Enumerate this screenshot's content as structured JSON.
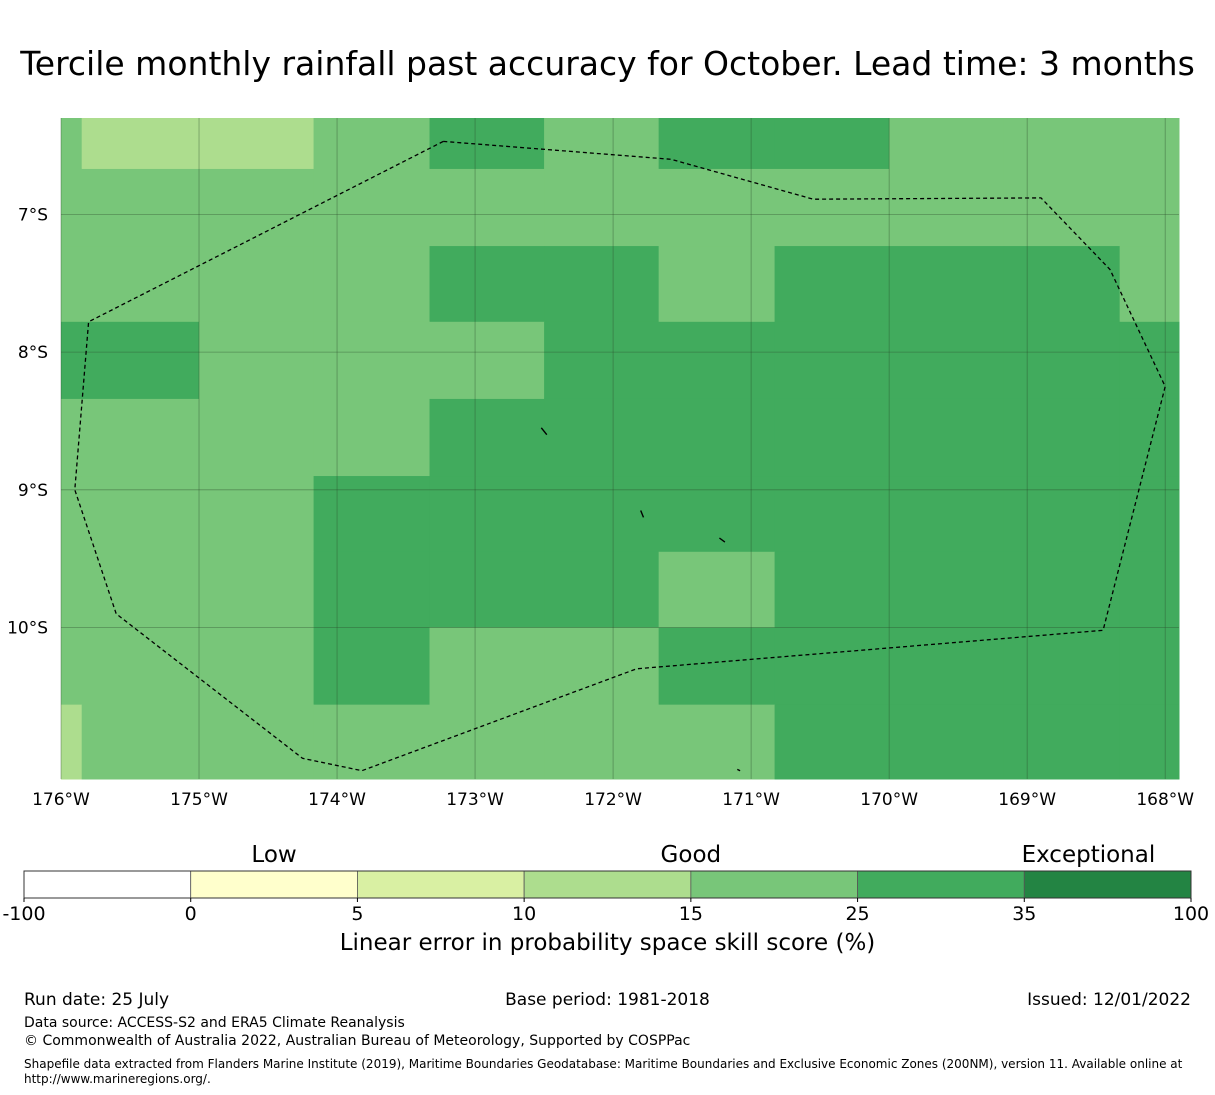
{
  "title": "Tercile monthly rainfall past accuracy for October. Lead time: 3 months",
  "map": {
    "lon_range": [
      -176,
      -167.9
    ],
    "lat_range": [
      -11.1,
      -6.3
    ],
    "x_ticks": [
      {
        "value": -176,
        "label": "176°W"
      },
      {
        "value": -175,
        "label": "175°W"
      },
      {
        "value": -174,
        "label": "174°W"
      },
      {
        "value": -173,
        "label": "173°W"
      },
      {
        "value": -172,
        "label": "172°W"
      },
      {
        "value": -171,
        "label": "171°W"
      },
      {
        "value": -170,
        "label": "170°W"
      },
      {
        "value": -169,
        "label": "169°W"
      },
      {
        "value": -168,
        "label": "168°W"
      }
    ],
    "y_ticks": [
      {
        "value": -7,
        "label": "7°S"
      },
      {
        "value": -8,
        "label": "8°S"
      },
      {
        "value": -9,
        "label": "9°S"
      },
      {
        "value": -10,
        "label": "10°S"
      }
    ],
    "cell_lon_edges": [
      -176,
      -175.85,
      -175,
      -174.17,
      -173.33,
      -172.5,
      -171.67,
      -170.83,
      -170,
      -169.17,
      -168.33,
      -167.9
    ],
    "cell_lat_edges": [
      -6.3,
      -6.67,
      -7.23,
      -7.78,
      -8.34,
      -8.9,
      -9.45,
      -10.0,
      -10.56,
      -11.1
    ],
    "skill_classes": [
      [
        4,
        3,
        3,
        4,
        5,
        4,
        5,
        5,
        4,
        4,
        4
      ],
      [
        4,
        4,
        4,
        4,
        4,
        4,
        4,
        4,
        4,
        4,
        4
      ],
      [
        4,
        4,
        4,
        4,
        5,
        5,
        4,
        5,
        5,
        5,
        4
      ],
      [
        5,
        5,
        4,
        4,
        4,
        5,
        5,
        5,
        5,
        5,
        5
      ],
      [
        4,
        4,
        4,
        4,
        5,
        5,
        5,
        5,
        5,
        5,
        5
      ],
      [
        4,
        4,
        4,
        5,
        5,
        5,
        5,
        5,
        5,
        5,
        5
      ],
      [
        4,
        4,
        4,
        5,
        5,
        5,
        4,
        5,
        5,
        5,
        5
      ],
      [
        4,
        4,
        4,
        5,
        4,
        4,
        5,
        5,
        5,
        5,
        5
      ],
      [
        3,
        4,
        4,
        4,
        4,
        4,
        4,
        5,
        5,
        5,
        5
      ]
    ],
    "eez_boundary": [
      [
        -173.23,
        -6.47
      ],
      [
        -171.58,
        -6.6
      ],
      [
        -170.55,
        -6.89
      ],
      [
        -168.9,
        -6.88
      ],
      [
        -168.4,
        -7.4
      ],
      [
        -168.0,
        -8.25
      ],
      [
        -168.45,
        -10.02
      ],
      [
        -171.83,
        -10.3
      ],
      [
        -173.82,
        -11.04
      ],
      [
        -174.25,
        -10.95
      ],
      [
        -175.6,
        -9.9
      ],
      [
        -175.9,
        -9.0
      ],
      [
        -175.8,
        -7.78
      ],
      [
        -173.23,
        -6.47
      ]
    ],
    "islands": [
      [
        [
          -172.52,
          -8.55
        ],
        [
          -172.48,
          -8.6
        ]
      ],
      [
        [
          -171.8,
          -9.15
        ],
        [
          -171.78,
          -9.2
        ]
      ],
      [
        [
          -171.23,
          -9.35
        ],
        [
          -171.19,
          -9.38
        ]
      ],
      [
        [
          -171.1,
          -11.03
        ],
        [
          -171.08,
          -11.04
        ]
      ]
    ]
  },
  "colorbar": {
    "categories": [
      {
        "label": "Low",
        "value": 2.5
      },
      {
        "label": "Good",
        "value": 15
      },
      {
        "label": "Exceptional",
        "value": 60
      }
    ],
    "boundaries": [
      "-100",
      "0",
      "5",
      "10",
      "15",
      "25",
      "35",
      "100"
    ],
    "colors": [
      "#ffffff",
      "#ffffcc",
      "#d9f0a3",
      "#addd8e",
      "#78c679",
      "#41ab5d",
      "#238443"
    ],
    "title": "Linear error in probability space skill score (%)"
  },
  "footer": {
    "run_date": "Run date: 25 July",
    "base_period": "Base period: 1981-2018",
    "issued": "Issued: 12/01/2022",
    "data_source": "Data source: ACCESS-S2 and ERA5 Climate Reanalysis",
    "copyright": "© Commonwealth of Australia 2022, Australian Bureau of Meteorology, Supported by COSPPac",
    "shapefile": "Shapefile data extracted from Flanders Marine Institute (2019), Maritime Boundaries Geodatabase: Maritime Boundaries and Exclusive Economic Zones (200NM), version 11. Available online at http://www.marineregions.org/."
  }
}
